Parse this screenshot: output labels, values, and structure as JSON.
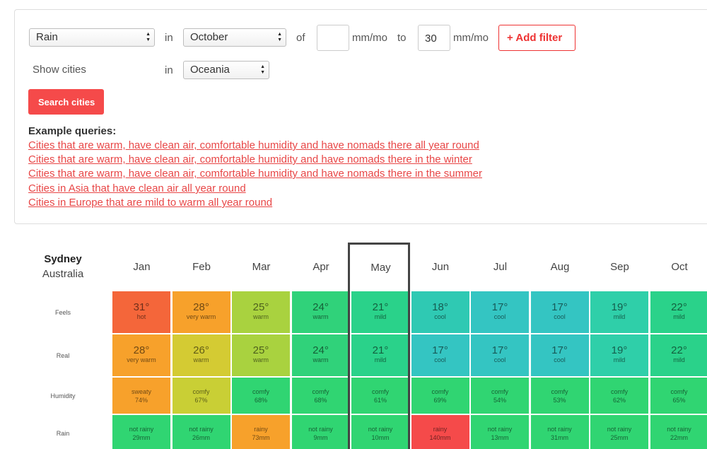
{
  "filter": {
    "metric": "Rain",
    "in_word": "in",
    "month": "October",
    "of_word": "of",
    "min_value": "",
    "unit": "mm/mo",
    "to_word": "to",
    "max_value": "30",
    "add_filter_label": "+  Add filter"
  },
  "region_row": {
    "label": "Show cities",
    "in_word": "in",
    "region": "Oceania"
  },
  "search_button": "Search cities",
  "examples": {
    "title": "Example queries:",
    "links": [
      "Cities that are warm, have clean air, comfortable humidity and have nomads there all year round",
      "Cities that are warm, have clean air, comfortable humidity and have nomads there in the winter",
      "Cities that are warm, have clean air, comfortable humidity and have nomads there in the summer",
      "Cities in Asia that have clean air all year round",
      "Cities in Europe that are mild to warm all year round"
    ]
  },
  "city": {
    "name": "Sydney",
    "country": "Australia"
  },
  "months": [
    "Jan",
    "Feb",
    "Mar",
    "Apr",
    "May",
    "Jun",
    "Jul",
    "Aug",
    "Sep",
    "Oct"
  ],
  "row_labels": [
    "Feels",
    "Real",
    "Humidity",
    "Rain"
  ],
  "feels": [
    {
      "value": "31°",
      "desc": "hot",
      "color": "#f4663a"
    },
    {
      "value": "28°",
      "desc": "very warm",
      "color": "#f7a12b"
    },
    {
      "value": "25°",
      "desc": "warm",
      "color": "#a9d23f"
    },
    {
      "value": "24°",
      "desc": "warm",
      "color": "#30d27a"
    },
    {
      "value": "21°",
      "desc": "mild",
      "color": "#2ad28a"
    },
    {
      "value": "18°",
      "desc": "cool",
      "color": "#2fc9b3"
    },
    {
      "value": "17°",
      "desc": "cool",
      "color": "#34c5c2"
    },
    {
      "value": "17°",
      "desc": "cool",
      "color": "#34c5c2"
    },
    {
      "value": "19°",
      "desc": "mild",
      "color": "#2fcfa9"
    },
    {
      "value": "22°",
      "desc": "mild",
      "color": "#2ad28a"
    }
  ],
  "real": [
    {
      "value": "28°",
      "desc": "very warm",
      "color": "#f7a12b"
    },
    {
      "value": "26°",
      "desc": "warm",
      "color": "#d4cb33"
    },
    {
      "value": "25°",
      "desc": "warm",
      "color": "#a9d23f"
    },
    {
      "value": "24°",
      "desc": "warm",
      "color": "#30d27a"
    },
    {
      "value": "21°",
      "desc": "mild",
      "color": "#2ad28a"
    },
    {
      "value": "17°",
      "desc": "cool",
      "color": "#34c5c2"
    },
    {
      "value": "17°",
      "desc": "cool",
      "color": "#34c5c2"
    },
    {
      "value": "17°",
      "desc": "cool",
      "color": "#34c5c2"
    },
    {
      "value": "19°",
      "desc": "mild",
      "color": "#2fcfa9"
    },
    {
      "value": "22°",
      "desc": "mild",
      "color": "#2ad28a"
    }
  ],
  "humidity": [
    {
      "desc": "sweaty",
      "value": "74%",
      "color": "#f7a12b"
    },
    {
      "desc": "comfy",
      "value": "67%",
      "color": "#c9cf35"
    },
    {
      "desc": "comfy",
      "value": "68%",
      "color": "#30d572"
    },
    {
      "desc": "comfy",
      "value": "68%",
      "color": "#30d572"
    },
    {
      "desc": "comfy",
      "value": "61%",
      "color": "#30d572"
    },
    {
      "desc": "comfy",
      "value": "69%",
      "color": "#30d572"
    },
    {
      "desc": "comfy",
      "value": "54%",
      "color": "#30d572"
    },
    {
      "desc": "comfy",
      "value": "53%",
      "color": "#30d572"
    },
    {
      "desc": "comfy",
      "value": "62%",
      "color": "#30d572"
    },
    {
      "desc": "comfy",
      "value": "65%",
      "color": "#30d572"
    }
  ],
  "rain": [
    {
      "desc": "not rainy",
      "value": "29mm",
      "color": "#30d572"
    },
    {
      "desc": "not rainy",
      "value": "26mm",
      "color": "#30d572"
    },
    {
      "desc": "rainy",
      "value": "73mm",
      "color": "#f7a12b"
    },
    {
      "desc": "not rainy",
      "value": "9mm",
      "color": "#30d572"
    },
    {
      "desc": "not rainy",
      "value": "10mm",
      "color": "#30d572"
    },
    {
      "desc": "rainy",
      "value": "140mm",
      "color": "#f54a4a"
    },
    {
      "desc": "not rainy",
      "value": "13mm",
      "color": "#30d572"
    },
    {
      "desc": "not rainy",
      "value": "31mm",
      "color": "#30d572"
    },
    {
      "desc": "not rainy",
      "value": "25mm",
      "color": "#30d572"
    },
    {
      "desc": "not rainy",
      "value": "22mm",
      "color": "#30d572"
    }
  ]
}
